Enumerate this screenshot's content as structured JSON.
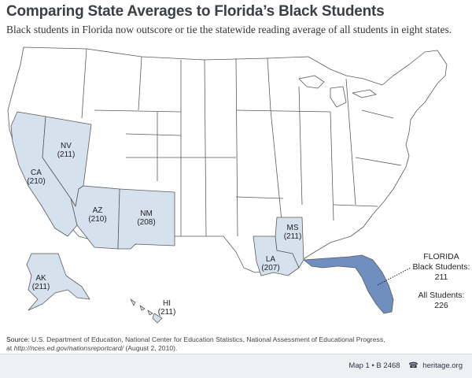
{
  "title": "Comparing State Averages to Florida’s Black Students",
  "subtitle": "Black students in Florida now outscore or tie the statewide reading average of all students in eight states.",
  "colors": {
    "highlight_state": "#d6e1ee",
    "florida": "#6e8fc0",
    "default_state": "#ffffff",
    "border": "#5a5a5a"
  },
  "states": [
    {
      "code": "NV",
      "score": "(211)"
    },
    {
      "code": "CA",
      "score": "(210)"
    },
    {
      "code": "AZ",
      "score": "(210)"
    },
    {
      "code": "NM",
      "score": "(208)"
    },
    {
      "code": "MS",
      "score": "(211)"
    },
    {
      "code": "LA",
      "score": "(207)"
    },
    {
      "code": "AK",
      "score": "(211)"
    },
    {
      "code": "HI",
      "score": "(211)"
    }
  ],
  "florida": {
    "name": "FLORIDA",
    "black_label": "Black Students:",
    "black_value": "211",
    "all_label": "All Students:",
    "all_value": "226"
  },
  "source": {
    "label": "Source:",
    "text": "U.S. Department of Education, National Center for Education Statistics, National Assessment of Educational Progress,",
    "at": "at",
    "url": "http://nces.ed.gov/nationsreportcard/",
    "date": "(August 2, 2010)."
  },
  "footer": {
    "map_ref": "Map 1 • B 2468",
    "phone_icon": "telephone-icon",
    "site": "heritage.org"
  }
}
